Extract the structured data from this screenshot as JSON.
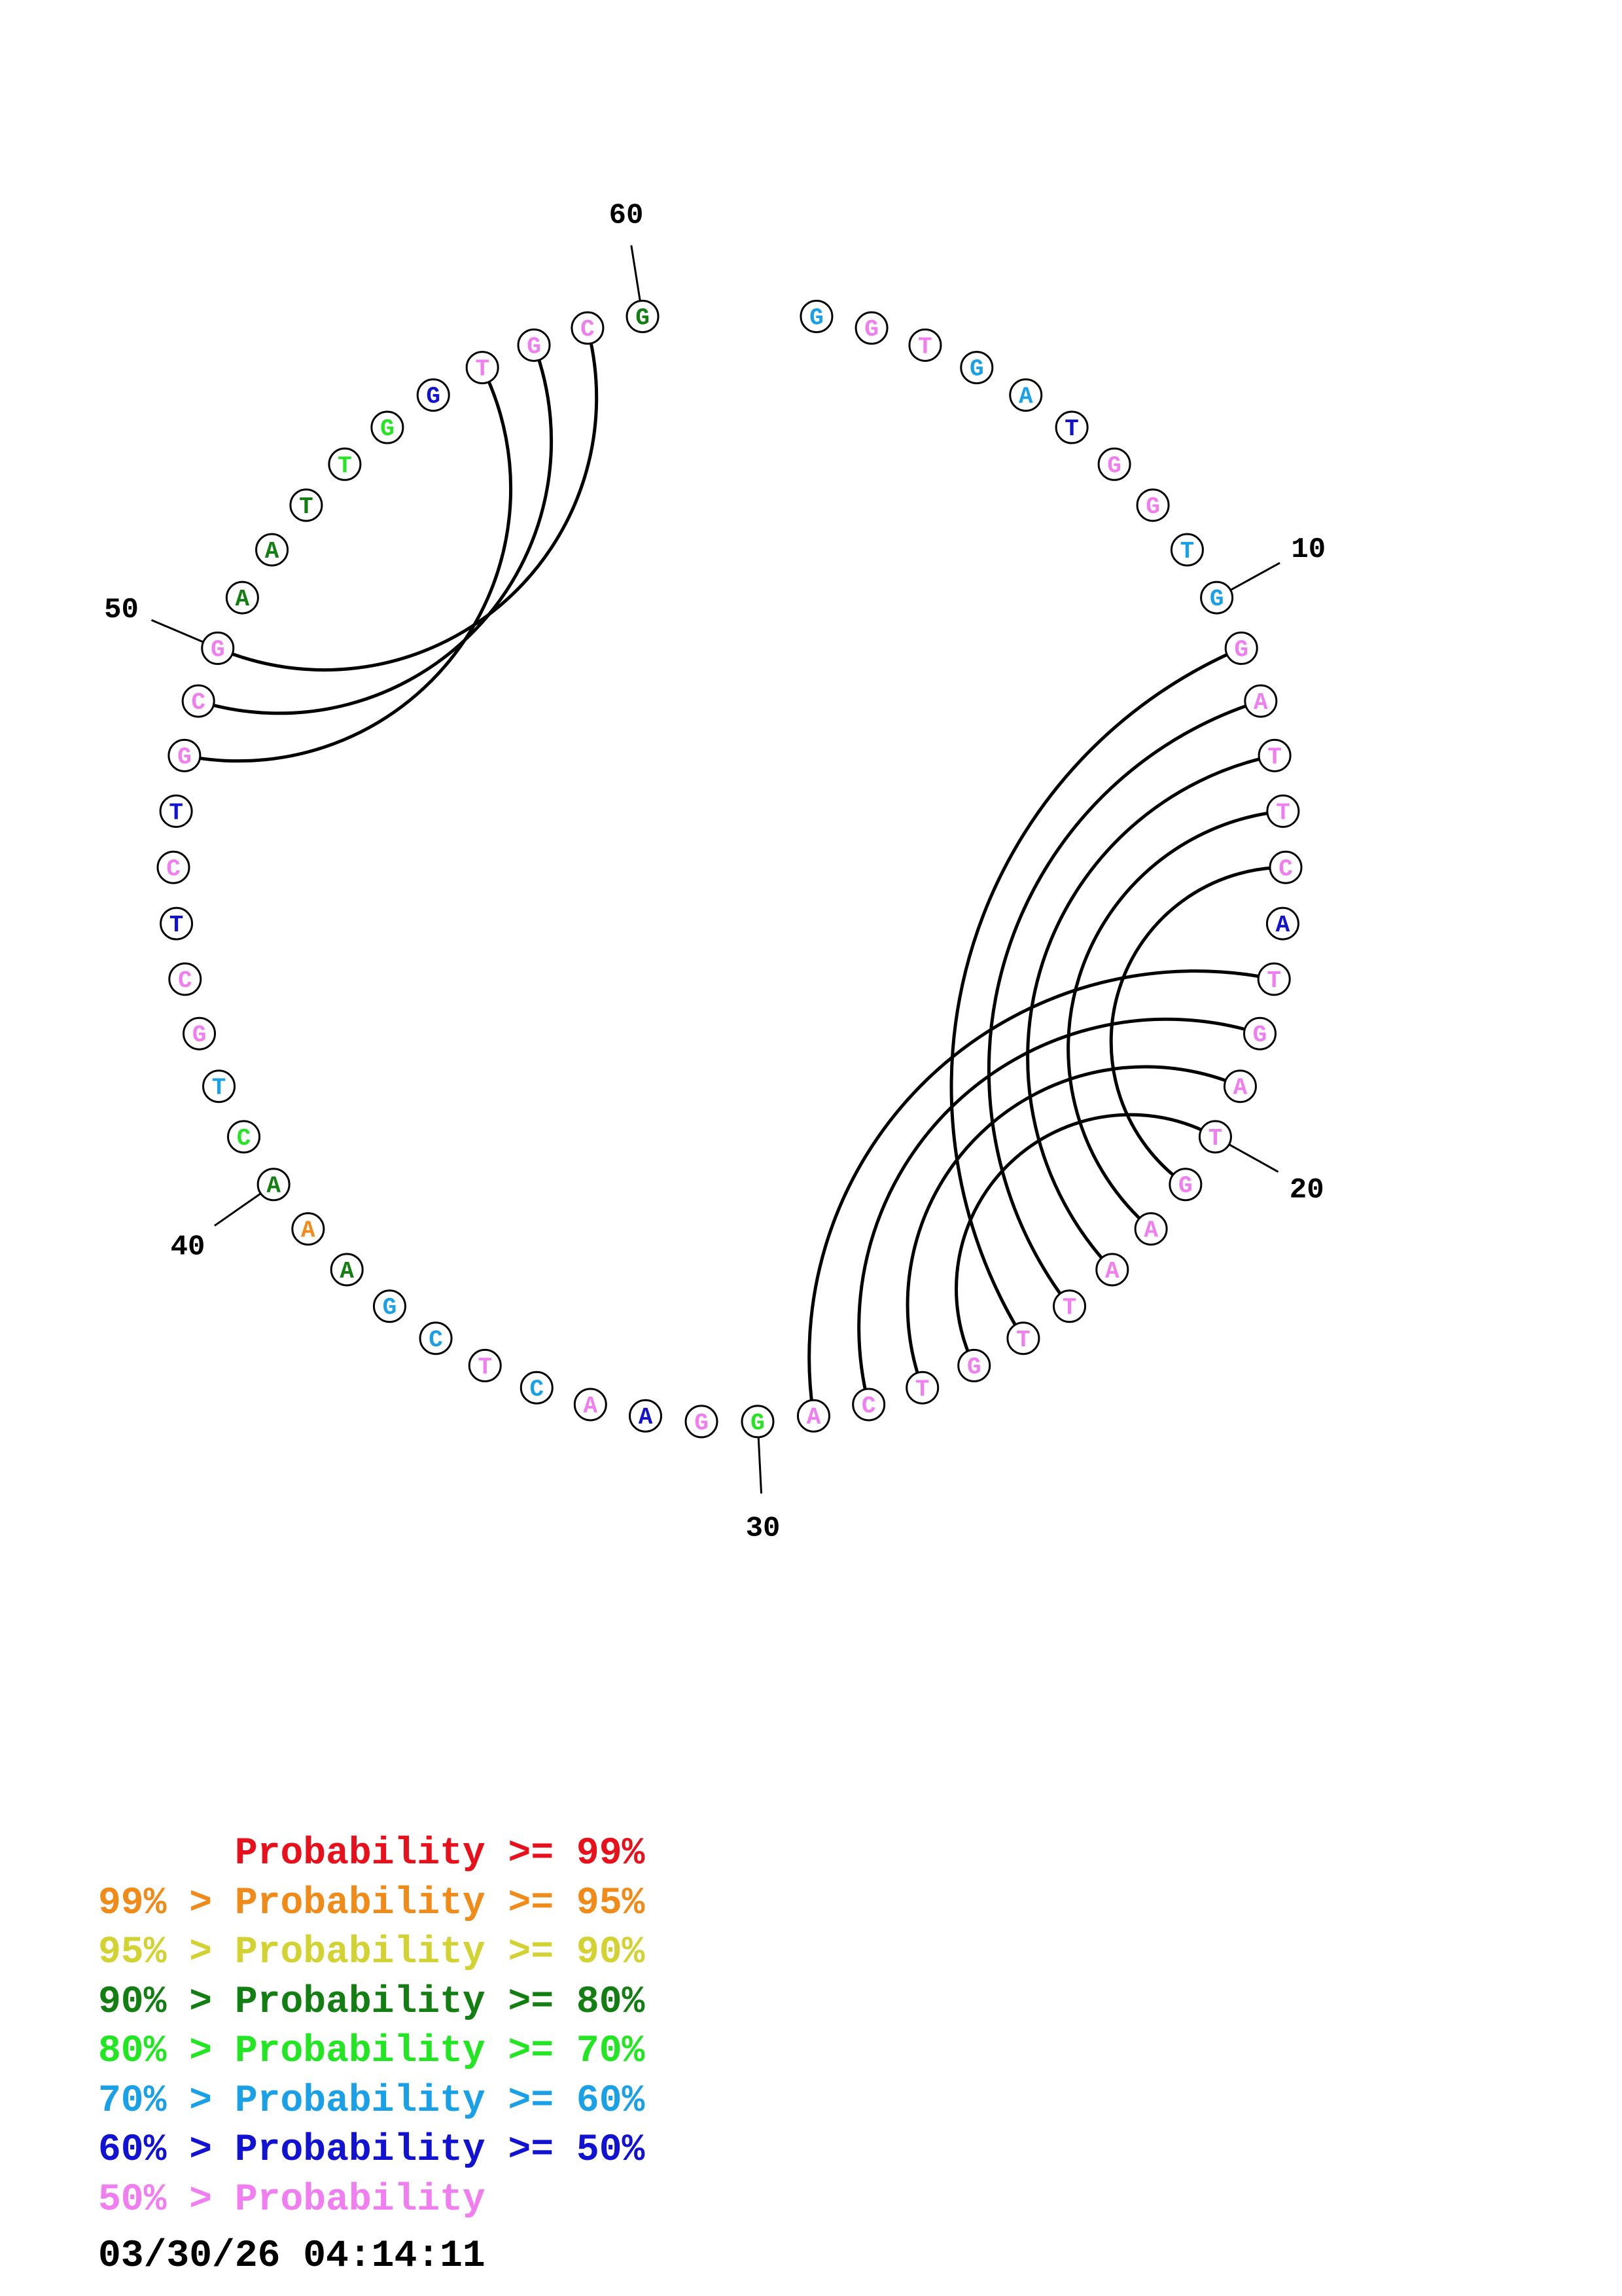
{
  "colors": {
    "ge99": "#e8101a",
    "p95_99": "#f08a18",
    "p90_95": "#d2d232",
    "p80_90": "#137f13",
    "p70_80": "#22e622",
    "p60_70": "#1aa0e6",
    "p50_60": "#1212d2",
    "lt50": "#f07ef0"
  },
  "sequence": [
    {
      "n": 1,
      "base": "G",
      "color": "p60_70"
    },
    {
      "n": 2,
      "base": "G",
      "color": "lt50"
    },
    {
      "n": 3,
      "base": "T",
      "color": "lt50"
    },
    {
      "n": 4,
      "base": "G",
      "color": "p60_70"
    },
    {
      "n": 5,
      "base": "A",
      "color": "p60_70"
    },
    {
      "n": 6,
      "base": "T",
      "color": "p50_60"
    },
    {
      "n": 7,
      "base": "G",
      "color": "lt50"
    },
    {
      "n": 8,
      "base": "G",
      "color": "lt50"
    },
    {
      "n": 9,
      "base": "T",
      "color": "p60_70"
    },
    {
      "n": 10,
      "base": "G",
      "color": "p60_70"
    },
    {
      "n": 11,
      "base": "G",
      "color": "lt50"
    },
    {
      "n": 12,
      "base": "A",
      "color": "lt50"
    },
    {
      "n": 13,
      "base": "T",
      "color": "lt50"
    },
    {
      "n": 14,
      "base": "T",
      "color": "lt50"
    },
    {
      "n": 15,
      "base": "C",
      "color": "lt50"
    },
    {
      "n": 16,
      "base": "A",
      "color": "p50_60"
    },
    {
      "n": 17,
      "base": "T",
      "color": "lt50"
    },
    {
      "n": 18,
      "base": "G",
      "color": "lt50"
    },
    {
      "n": 19,
      "base": "A",
      "color": "lt50"
    },
    {
      "n": 20,
      "base": "T",
      "color": "lt50"
    },
    {
      "n": 21,
      "base": "G",
      "color": "lt50"
    },
    {
      "n": 22,
      "base": "A",
      "color": "lt50"
    },
    {
      "n": 23,
      "base": "A",
      "color": "lt50"
    },
    {
      "n": 24,
      "base": "T",
      "color": "lt50"
    },
    {
      "n": 25,
      "base": "T",
      "color": "lt50"
    },
    {
      "n": 26,
      "base": "G",
      "color": "lt50"
    },
    {
      "n": 27,
      "base": "T",
      "color": "lt50"
    },
    {
      "n": 28,
      "base": "C",
      "color": "lt50"
    },
    {
      "n": 29,
      "base": "A",
      "color": "lt50"
    },
    {
      "n": 30,
      "base": "G",
      "color": "p70_80"
    },
    {
      "n": 31,
      "base": "G",
      "color": "lt50"
    },
    {
      "n": 32,
      "base": "A",
      "color": "p50_60"
    },
    {
      "n": 33,
      "base": "A",
      "color": "lt50"
    },
    {
      "n": 34,
      "base": "C",
      "color": "p60_70"
    },
    {
      "n": 35,
      "base": "T",
      "color": "lt50"
    },
    {
      "n": 36,
      "base": "C",
      "color": "p60_70"
    },
    {
      "n": 37,
      "base": "G",
      "color": "p60_70"
    },
    {
      "n": 38,
      "base": "A",
      "color": "p80_90"
    },
    {
      "n": 39,
      "base": "A",
      "color": "p95_99"
    },
    {
      "n": 40,
      "base": "A",
      "color": "p80_90"
    },
    {
      "n": 41,
      "base": "C",
      "color": "p70_80"
    },
    {
      "n": 42,
      "base": "T",
      "color": "p60_70"
    },
    {
      "n": 43,
      "base": "G",
      "color": "lt50"
    },
    {
      "n": 44,
      "base": "C",
      "color": "lt50"
    },
    {
      "n": 45,
      "base": "T",
      "color": "p50_60"
    },
    {
      "n": 46,
      "base": "C",
      "color": "lt50"
    },
    {
      "n": 47,
      "base": "T",
      "color": "p50_60"
    },
    {
      "n": 48,
      "base": "G",
      "color": "lt50"
    },
    {
      "n": 49,
      "base": "C",
      "color": "lt50"
    },
    {
      "n": 50,
      "base": "G",
      "color": "lt50"
    },
    {
      "n": 51,
      "base": "A",
      "color": "p80_90"
    },
    {
      "n": 52,
      "base": "A",
      "color": "p80_90"
    },
    {
      "n": 53,
      "base": "T",
      "color": "p80_90"
    },
    {
      "n": 54,
      "base": "T",
      "color": "p70_80"
    },
    {
      "n": 55,
      "base": "G",
      "color": "p70_80"
    },
    {
      "n": 56,
      "base": "G",
      "color": "p50_60"
    },
    {
      "n": 57,
      "base": "T",
      "color": "lt50"
    },
    {
      "n": 58,
      "base": "G",
      "color": "lt50"
    },
    {
      "n": 59,
      "base": "C",
      "color": "lt50"
    },
    {
      "n": 60,
      "base": "G",
      "color": "p80_90"
    }
  ],
  "pairs": [
    [
      11,
      25
    ],
    [
      12,
      24
    ],
    [
      13,
      23
    ],
    [
      14,
      22
    ],
    [
      15,
      21
    ],
    [
      17,
      29
    ],
    [
      18,
      28
    ],
    [
      19,
      27
    ],
    [
      20,
      26
    ],
    [
      48,
      57
    ],
    [
      49,
      58
    ],
    [
      50,
      59
    ]
  ],
  "position_labels": [
    {
      "n": 10,
      "text": "10"
    },
    {
      "n": 20,
      "text": "20"
    },
    {
      "n": 30,
      "text": "30"
    },
    {
      "n": 40,
      "text": "40"
    },
    {
      "n": 50,
      "text": "50"
    },
    {
      "n": 60,
      "text": "60"
    }
  ],
  "legend": [
    {
      "prefix": "",
      "label": "Probability >= 99%",
      "color": "ge99"
    },
    {
      "prefix": "99% > ",
      "label": "Probability >= 95%",
      "color": "p95_99"
    },
    {
      "prefix": "95% > ",
      "label": "Probability >= 90%",
      "color": "p90_95"
    },
    {
      "prefix": "90% > ",
      "label": "Probability >= 80%",
      "color": "p80_90"
    },
    {
      "prefix": "80% > ",
      "label": "Probability >= 70%",
      "color": "p70_80"
    },
    {
      "prefix": "70% > ",
      "label": "Probability >= 60%",
      "color": "p60_70"
    },
    {
      "prefix": "60% > ",
      "label": "Probability >= 50%",
      "color": "p50_60"
    },
    {
      "prefix": "50% > ",
      "label": "Probability",
      "color": "lt50"
    }
  ],
  "timestamp": "03/30/26 04:14:11"
}
